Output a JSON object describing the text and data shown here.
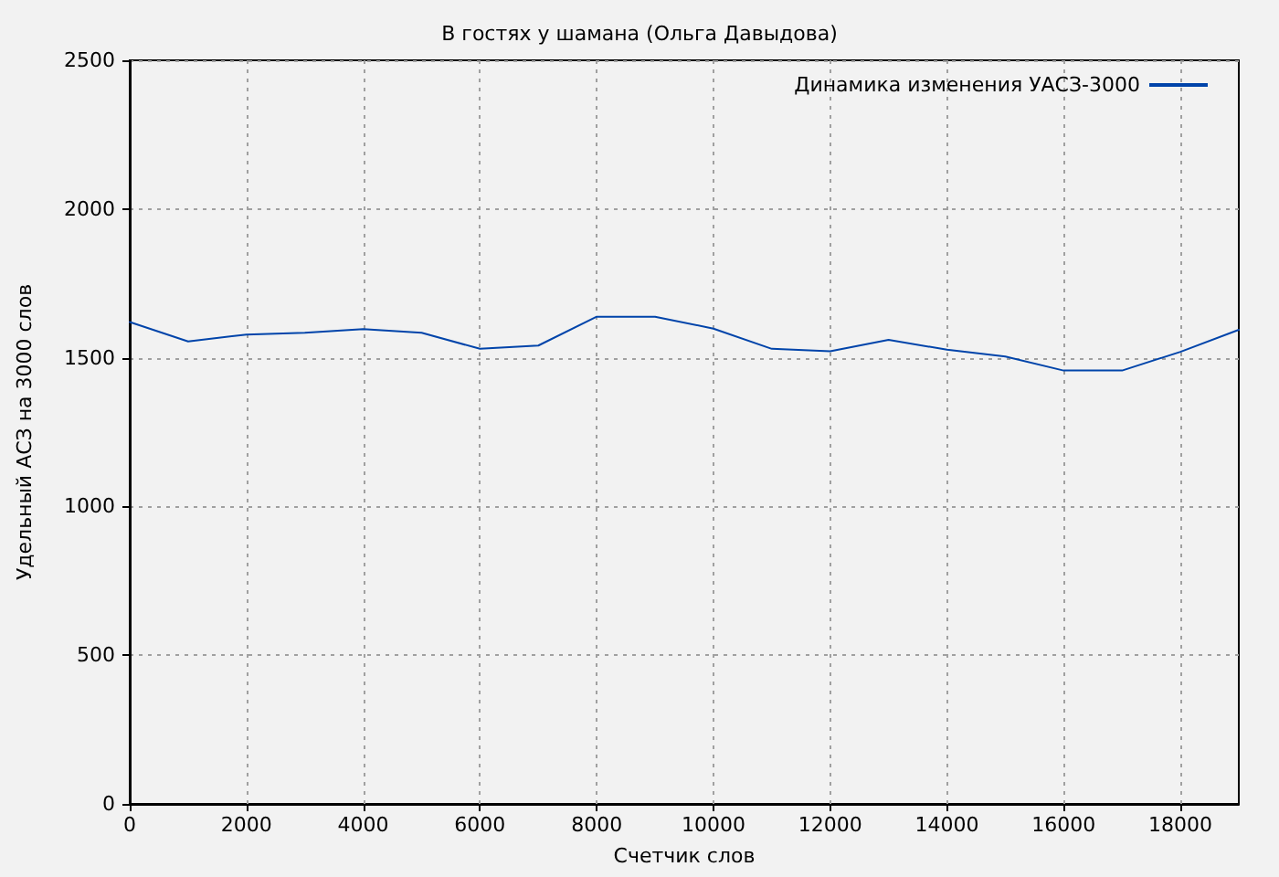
{
  "chart_data": {
    "type": "line",
    "title": "В гостях у шамана (Ольга Давыдова)",
    "xlabel": "Счетчик слов",
    "ylabel": "Удельный АСЗ на 3000 слов",
    "x": [
      0,
      1000,
      2000,
      3000,
      4000,
      5000,
      6000,
      7000,
      8000,
      9000,
      10000,
      11000,
      12000,
      13000,
      14000,
      15000,
      16000,
      17000,
      18000,
      19000
    ],
    "series": [
      {
        "name": "Динамика изменения УАСЗ-3000",
        "color": "#0044aa",
        "values": [
          1620,
          1555,
          1578,
          1584,
          1596,
          1584,
          1530,
          1541,
          1638,
          1638,
          1598,
          1530,
          1522,
          1560,
          1527,
          1504,
          1457,
          1457,
          1520,
          1594
        ]
      }
    ],
    "xlim": [
      0,
      19000
    ],
    "ylim": [
      0,
      2500
    ],
    "xticks": [
      0,
      2000,
      4000,
      6000,
      8000,
      10000,
      12000,
      14000,
      16000,
      18000
    ],
    "yticks": [
      0,
      500,
      1000,
      1500,
      2000,
      2500
    ],
    "grid": true,
    "legend": "top right"
  }
}
